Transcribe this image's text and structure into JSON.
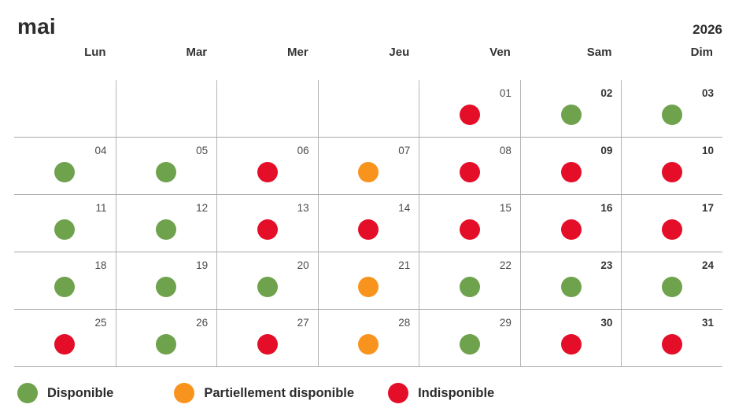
{
  "title": {
    "month": "mai",
    "year": "2026"
  },
  "weekdays": [
    "Lun",
    "Mar",
    "Mer",
    "Jeu",
    "Ven",
    "Sam",
    "Dim"
  ],
  "weeks": [
    [
      {
        "day": ""
      },
      {
        "day": ""
      },
      {
        "day": ""
      },
      {
        "day": ""
      },
      {
        "day": "01",
        "status": "indisponible"
      },
      {
        "day": "02",
        "status": "disponible"
      },
      {
        "day": "03",
        "status": "disponible"
      }
    ],
    [
      {
        "day": "04",
        "status": "disponible"
      },
      {
        "day": "05",
        "status": "disponible"
      },
      {
        "day": "06",
        "status": "indisponible"
      },
      {
        "day": "07",
        "status": "partiellement_disponible"
      },
      {
        "day": "08",
        "status": "indisponible"
      },
      {
        "day": "09",
        "status": "indisponible"
      },
      {
        "day": "10",
        "status": "indisponible"
      }
    ],
    [
      {
        "day": "11",
        "status": "disponible"
      },
      {
        "day": "12",
        "status": "disponible"
      },
      {
        "day": "13",
        "status": "indisponible"
      },
      {
        "day": "14",
        "status": "indisponible"
      },
      {
        "day": "15",
        "status": "indisponible"
      },
      {
        "day": "16",
        "status": "indisponible"
      },
      {
        "day": "17",
        "status": "indisponible"
      }
    ],
    [
      {
        "day": "18",
        "status": "disponible"
      },
      {
        "day": "19",
        "status": "disponible"
      },
      {
        "day": "20",
        "status": "disponible"
      },
      {
        "day": "21",
        "status": "partiellement_disponible"
      },
      {
        "day": "22",
        "status": "disponible"
      },
      {
        "day": "23",
        "status": "disponible"
      },
      {
        "day": "24",
        "status": "disponible"
      }
    ],
    [
      {
        "day": "25",
        "status": "indisponible"
      },
      {
        "day": "26",
        "status": "disponible"
      },
      {
        "day": "27",
        "status": "indisponible"
      },
      {
        "day": "28",
        "status": "partiellement_disponible"
      },
      {
        "day": "29",
        "status": "disponible"
      },
      {
        "day": "30",
        "status": "indisponible"
      },
      {
        "day": "31",
        "status": "indisponible"
      }
    ]
  ],
  "legend": [
    {
      "label": "Disponible",
      "status": "disponible"
    },
    {
      "label": "Partiellement disponible",
      "status": "partiellement_disponible"
    },
    {
      "label": "Indisponible",
      "status": "indisponible"
    }
  ],
  "status_colors": {
    "disponible": "#6FA24D",
    "partiellement_disponible": "#F8941D",
    "indisponible": "#E40E29"
  }
}
